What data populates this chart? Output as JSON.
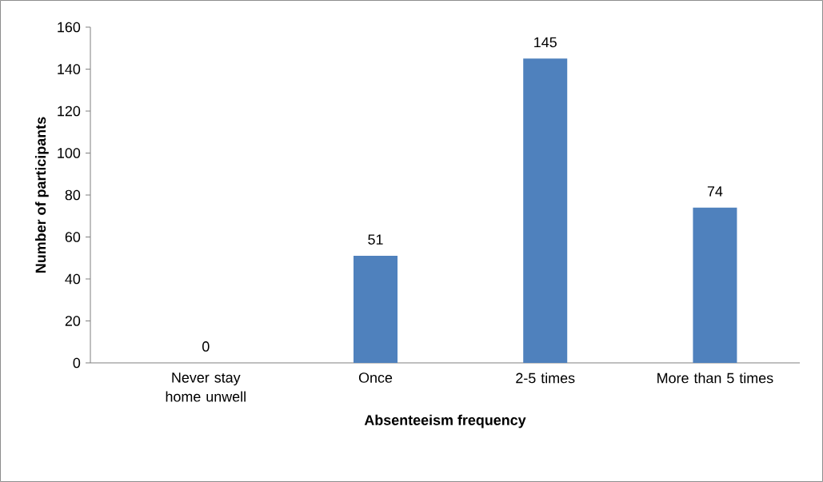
{
  "chart_data": {
    "type": "bar",
    "xlabel": "Absenteeism frequency",
    "ylabel": "Number of participants",
    "categories": [
      "Never stay home unwell",
      "Once",
      "2-5 times",
      "More than 5 times"
    ],
    "values": [
      0,
      51,
      145,
      74
    ],
    "color": "#4f81bd",
    "ylim": [
      0,
      160
    ],
    "yticks": [
      0,
      20,
      40,
      60,
      80,
      100,
      120,
      140,
      160
    ],
    "data_labels": true
  }
}
